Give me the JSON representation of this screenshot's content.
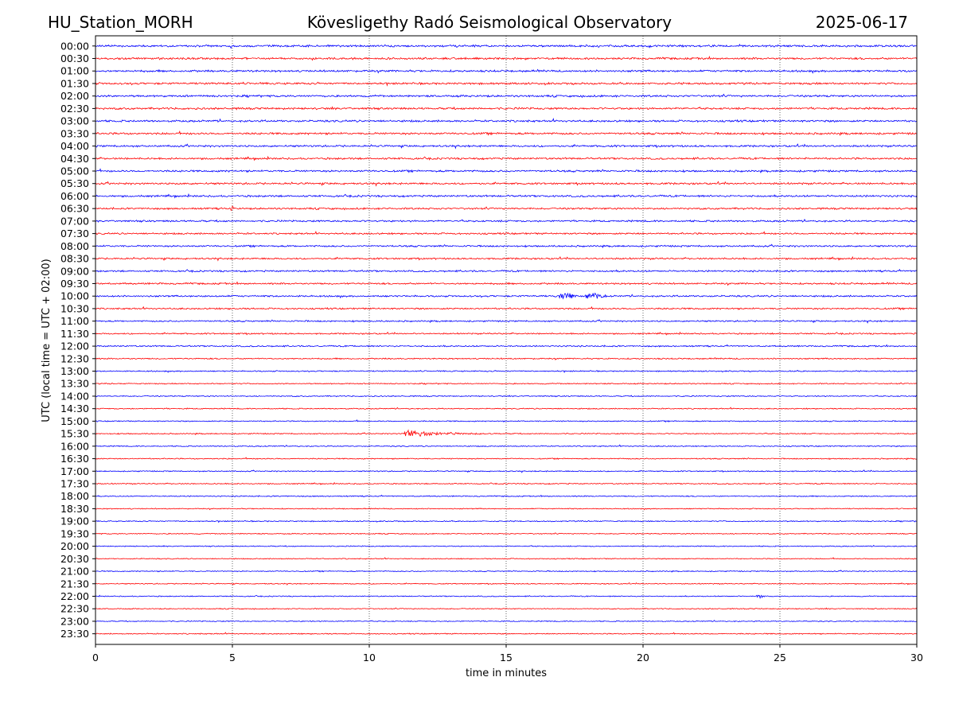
{
  "header": {
    "station": "HU_Station_MORH",
    "observatory": "Kövesligethy Radó Seismological Observatory",
    "date": "2025-06-17"
  },
  "chart_data": {
    "type": "line",
    "title": "Kövesligethy Radó Seismological Observatory",
    "xlabel": "time in minutes",
    "ylabel": "UTC (local time = UTC + 02:00)",
    "xlim": [
      0,
      30
    ],
    "x_ticks": [
      "0",
      "5",
      "10",
      "15",
      "20",
      "25",
      "30"
    ],
    "x_tick_values": [
      0,
      5,
      10,
      15,
      20,
      25,
      30
    ],
    "grid": "vertical dotted lines at 5-minute intervals",
    "legend": "none",
    "series_colors": {
      "full_hour": "#0000ff",
      "half_hour": "#ff0000"
    },
    "rows": [
      "00:00",
      "00:30",
      "01:00",
      "01:30",
      "02:00",
      "02:30",
      "03:00",
      "03:30",
      "04:00",
      "04:30",
      "05:00",
      "05:30",
      "06:00",
      "06:30",
      "07:00",
      "07:30",
      "08:00",
      "08:30",
      "09:00",
      "09:30",
      "10:00",
      "10:30",
      "11:00",
      "11:30",
      "12:00",
      "12:30",
      "13:00",
      "13:30",
      "14:00",
      "14:30",
      "15:00",
      "15:30",
      "16:00",
      "16:30",
      "17:00",
      "17:30",
      "18:00",
      "18:30",
      "19:00",
      "19:30",
      "20:00",
      "20:30",
      "21:00",
      "21:30",
      "22:00",
      "22:30",
      "23:00",
      "23:30"
    ],
    "noise_level": [
      1.0,
      1.0,
      1.0,
      1.0,
      1.0,
      1.0,
      1.0,
      1.0,
      0.95,
      0.95,
      0.95,
      0.95,
      0.95,
      0.9,
      0.9,
      0.85,
      0.85,
      0.85,
      0.85,
      0.85,
      0.85,
      0.8,
      0.75,
      0.7,
      0.7,
      0.65,
      0.6,
      0.55,
      0.55,
      0.55,
      0.55,
      0.55,
      0.55,
      0.55,
      0.55,
      0.55,
      0.55,
      0.5,
      0.55,
      0.5,
      0.5,
      0.5,
      0.5,
      0.5,
      0.5,
      0.5,
      0.5,
      0.55
    ],
    "events": [
      {
        "row": "10:00",
        "start_min": 16.8,
        "end_min": 17.6,
        "amplitude": 2.6
      },
      {
        "row": "10:00",
        "start_min": 17.8,
        "end_min": 18.7,
        "amplitude": 2.4
      },
      {
        "row": "15:30",
        "start_min": 11.25,
        "end_min": 14.8,
        "amplitude": 3.2
      },
      {
        "row": "22:00",
        "start_min": 24.1,
        "end_min": 24.4,
        "amplitude": 1.8
      },
      {
        "row": "06:30",
        "start_min": 4.9,
        "end_min": 5.05,
        "amplitude": 1.8
      },
      {
        "row": "04:30",
        "start_min": 25.9,
        "end_min": 26.0,
        "amplitude": 1.8
      }
    ]
  }
}
